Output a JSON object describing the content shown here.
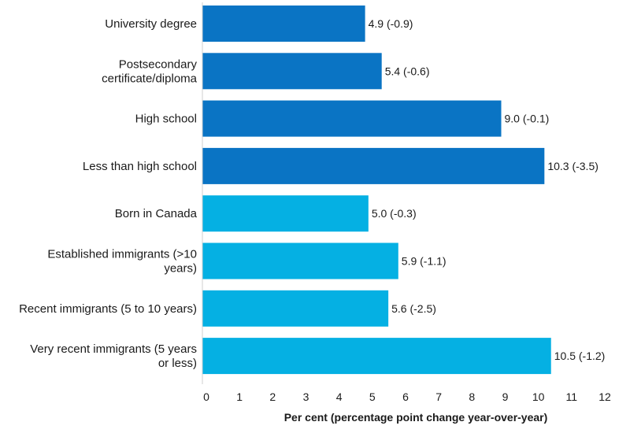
{
  "chart_data": {
    "type": "bar",
    "orientation": "horizontal",
    "categories": [
      "University degree",
      "Postsecondary certificate/diploma",
      "High school",
      "Less than high school",
      "Born in Canada",
      "Established immigrants (>10 years)",
      "Recent immigrants (5 to 10 years)",
      "Very recent immigrants (5 years or less)"
    ],
    "category_lines": [
      [
        "University degree"
      ],
      [
        "Postsecondary",
        "certificate/diploma"
      ],
      [
        "High school"
      ],
      [
        "Less than high school"
      ],
      [
        "Born in Canada"
      ],
      [
        "Established immigrants (>10",
        "years)"
      ],
      [
        "Recent immigrants (5 to 10 years)"
      ],
      [
        "Very recent immigrants (5 years",
        "or less)"
      ]
    ],
    "values": [
      4.9,
      5.4,
      9.0,
      10.3,
      5.0,
      5.9,
      5.6,
      10.5
    ],
    "value_labels": [
      "4.9 (-0.9)",
      "5.4 (-0.6)",
      "9.0 (-0.1)",
      "10.3 (-3.5)",
      "5.0 (-0.3)",
      "5.9 (-1.1)",
      "5.6 (-2.5)",
      "10.5 (-1.2)"
    ],
    "bar_colors": [
      "#0a74c4",
      "#0a74c4",
      "#0a74c4",
      "#0a74c4",
      "#05b0e3",
      "#05b0e3",
      "#05b0e3",
      "#05b0e3"
    ],
    "xlabel": "Per cent (percentage point change year-over-year)",
    "xticks": [
      "0",
      "1",
      "2",
      "3",
      "4",
      "5",
      "6",
      "7",
      "8",
      "9",
      "10",
      "11",
      "12"
    ],
    "xlim": [
      0,
      12
    ],
    "grid": false,
    "legend": "none"
  }
}
